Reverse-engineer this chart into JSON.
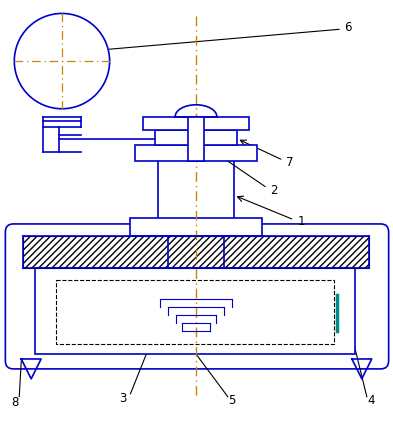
{
  "bg_color": "#ffffff",
  "blue": "#0000CD",
  "orange_line": "#C8860A",
  "teal": "#008B8B",
  "black": "#000000",
  "fig_w": 3.93,
  "fig_h": 4.3,
  "dpi": 100
}
